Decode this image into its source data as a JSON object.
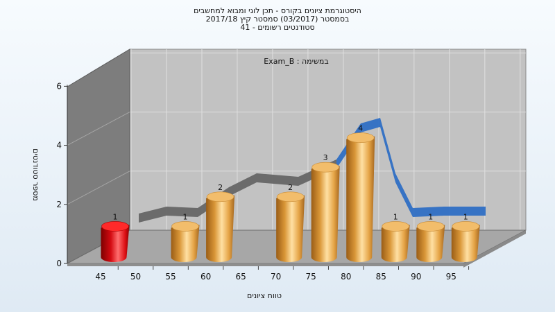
{
  "chart_data": {
    "type": "bar",
    "title_lines": [
      "היסטוגרמת ציונים בקורס - תכן לוגי ומבוא למחשבים",
      "בסמסטר  (03/2017)  סמסטר קיץ 2017/18",
      "סטודנטים רשומים - 41"
    ],
    "subtitle": "במשימה : Exam_B",
    "xlabel": "טווח ציונים",
    "ylabel": "מספר סטודנטים",
    "ylim": [
      0,
      6
    ],
    "yticks": [
      "0",
      "2",
      "4",
      "6"
    ],
    "xticks": [
      "45",
      "50",
      "55",
      "60",
      "65",
      "70",
      "75",
      "80",
      "85",
      "90",
      "95"
    ],
    "bars": [
      {
        "bin": "45",
        "value": 1,
        "label": "1",
        "color": "#e0141b"
      },
      {
        "bin": "55",
        "value": 1,
        "label": "1",
        "color": "#e4a446"
      },
      {
        "bin": "60",
        "value": 2,
        "label": "2",
        "color": "#e4a446"
      },
      {
        "bin": "70",
        "value": 2,
        "label": "2",
        "color": "#e4a446"
      },
      {
        "bin": "75",
        "value": 3,
        "label": "3",
        "color": "#e4a446"
      },
      {
        "bin": "80",
        "value": 4,
        "label": "4",
        "color": "#e4a446"
      },
      {
        "bin": "85",
        "value": 1,
        "label": "1",
        "color": "#e4a446"
      },
      {
        "bin": "90",
        "value": 1,
        "label": "1",
        "color": "#e4a446"
      },
      {
        "bin": "95",
        "value": 1,
        "label": "1",
        "color": "#e4a446"
      }
    ],
    "trend_colors": {
      "hidden": "#666666",
      "visible": "#2f6fc4"
    },
    "legend": "none",
    "grid": true
  }
}
